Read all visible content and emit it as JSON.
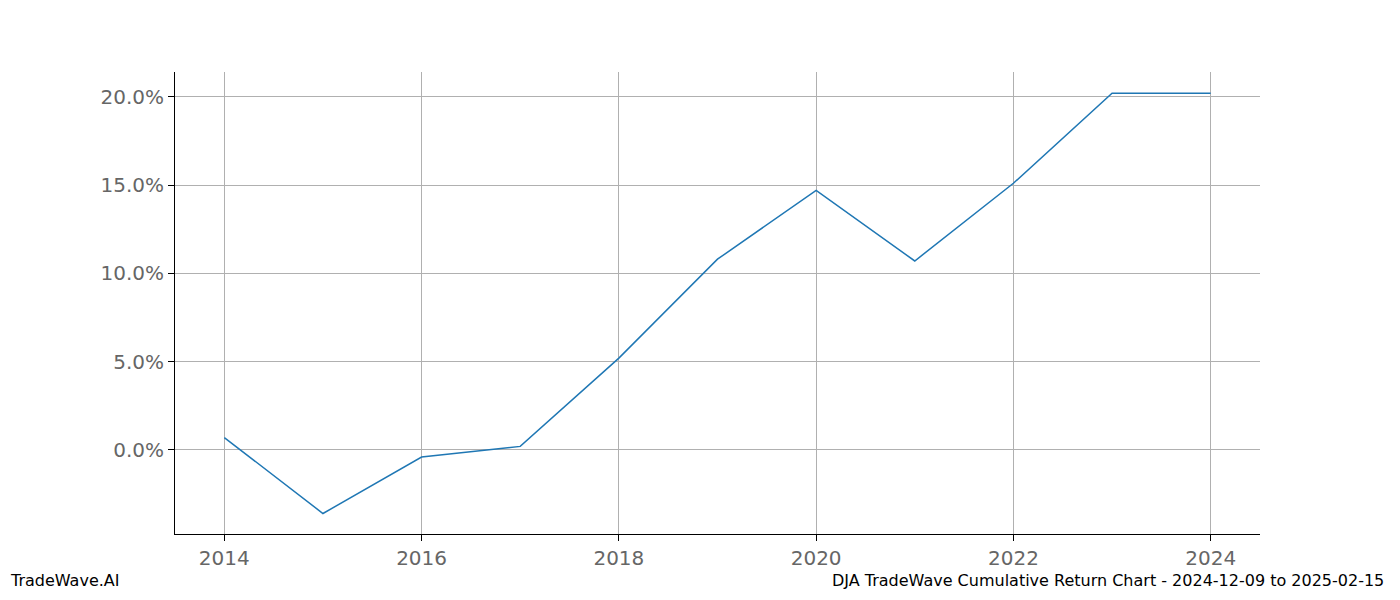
{
  "chart_data": {
    "type": "line",
    "x": [
      2014,
      2015,
      2016,
      2017,
      2018,
      2019,
      2020,
      2021,
      2022,
      2023,
      2024
    ],
    "values": [
      0.7,
      -3.6,
      -0.4,
      0.2,
      5.2,
      10.8,
      14.7,
      10.7,
      15.1,
      20.2,
      20.2
    ],
    "color": "#1f77b4",
    "xlim": [
      2013.5,
      2024.5
    ],
    "xticks": [
      2014,
      2016,
      2018,
      2020,
      2022,
      2024
    ],
    "ylim": [
      -4.76,
      21.4
    ],
    "yticks": [
      {
        "value": 0,
        "label": "0.0%"
      },
      {
        "value": 5,
        "label": "5.0%"
      },
      {
        "value": 10,
        "label": "10.0%"
      },
      {
        "value": 15,
        "label": "15.0%"
      },
      {
        "value": 20,
        "label": "20.0%"
      }
    ],
    "grid": true,
    "footer_left": "TradeWave.AI",
    "footer_right": "DJA TradeWave Cumulative Return Chart - 2024-12-09 to 2025-02-15"
  }
}
